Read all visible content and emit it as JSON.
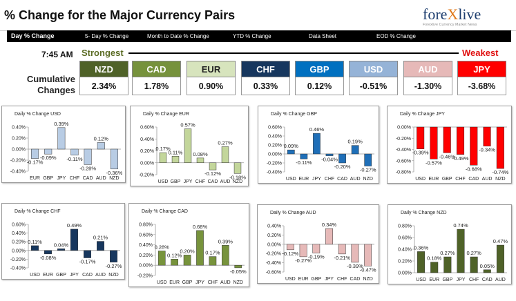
{
  "header": {
    "title": "% Change for the Major Currency Pairs",
    "logo_text_a": "fore",
    "logo_text_x": "X",
    "logo_text_b": "live",
    "logo_tagline": "Forexlive Currency Market News"
  },
  "nav": {
    "items": [
      "Day % Change",
      "5- Day % Change",
      "Month to Date % Change",
      "YTD % Change",
      "Data Sheet",
      "EOD % Change"
    ]
  },
  "summary": {
    "time": "7:45 AM",
    "strongest": "Strongest",
    "weakest": "Weakest",
    "cumulative_label": "Cumulative Changes",
    "currencies": [
      {
        "code": "NZD",
        "value": "2.34%",
        "bg": "#4f6228",
        "fg": "#ffffff"
      },
      {
        "code": "CAD",
        "value": "1.78%",
        "bg": "#76923c",
        "fg": "#ffffff"
      },
      {
        "code": "EUR",
        "value": "0.90%",
        "bg": "#d7e4bd",
        "fg": "#222222"
      },
      {
        "code": "CHF",
        "value": "0.33%",
        "bg": "#17375e",
        "fg": "#ffffff"
      },
      {
        "code": "GBP",
        "value": "0.12%",
        "bg": "#0070c0",
        "fg": "#ffffff"
      },
      {
        "code": "USD",
        "value": "-0.51%",
        "bg": "#95b3d7",
        "fg": "#ffffff"
      },
      {
        "code": "AUD",
        "value": "-1.30%",
        "bg": "#e6b9b8",
        "fg": "#ffffff"
      },
      {
        "code": "JPY",
        "value": "-3.68%",
        "bg": "#ff0000",
        "fg": "#ffffff"
      }
    ]
  },
  "chart_data": [
    {
      "type": "bar",
      "title": "Daily % Change USD",
      "categories": [
        "EUR",
        "GBP",
        "JPY",
        "CHF",
        "CAD",
        "AUD",
        "NZD"
      ],
      "values": [
        -0.17,
        -0.09,
        0.39,
        -0.11,
        -0.28,
        0.12,
        -0.36
      ],
      "labels": [
        "-0.17%",
        "-0.09%",
        "0.39%",
        "-0.11%",
        "-0.28%",
        "0.12%",
        "-0.36%"
      ],
      "ylim": [
        -0.4,
        0.4
      ],
      "ticks": [
        "0.40%",
        "0.20%",
        "0.00%",
        "-0.20%",
        "-0.40%"
      ],
      "colors": [
        "#b8cce4",
        "#b8cce4",
        "#b8cce4",
        "#b8cce4",
        "#b8cce4",
        "#b8cce4",
        "#b8cce4"
      ],
      "outlier": "#dbe5f1"
    },
    {
      "type": "bar",
      "title": "Daily % Change EUR",
      "categories": [
        "USD",
        "GBP",
        "JPY",
        "CHF",
        "CAD",
        "AUD",
        "NZD"
      ],
      "values": [
        0.17,
        0.11,
        0.57,
        0.08,
        -0.12,
        0.27,
        -0.18
      ],
      "labels": [
        "0.17%",
        "0.11%",
        "0.57%",
        "0.08%",
        "-0.12%",
        "0.27%",
        "-0.18%"
      ],
      "ylim": [
        -0.2,
        0.6
      ],
      "ticks": [
        "0.60%",
        "0.40%",
        "0.20%",
        "0.00%",
        "-0.20%"
      ],
      "colors": [
        "#c3d69b",
        "#c3d69b",
        "#c3d69b",
        "#c3d69b",
        "#c3d69b",
        "#c3d69b",
        "#c3d69b"
      ]
    },
    {
      "type": "bar",
      "title": "Daily % Change GBP",
      "categories": [
        "USD",
        "EUR",
        "JPY",
        "CHF",
        "CAD",
        "AUD",
        "NZD"
      ],
      "values": [
        0.09,
        -0.11,
        0.46,
        -0.04,
        -0.2,
        0.19,
        -0.27
      ],
      "labels": [
        "0.09%",
        "-0.11%",
        "0.46%",
        "-0.04%",
        "-0.20%",
        "0.19%",
        "-0.27%"
      ],
      "ylim": [
        -0.4,
        0.6
      ],
      "ticks": [
        "0.60%",
        "0.40%",
        "0.20%",
        "0.00%",
        "-0.20%",
        "-0.40%"
      ],
      "colors": [
        "#1f6fb8",
        "#1f6fb8",
        "#1f6fb8",
        "#1f6fb8",
        "#1f6fb8",
        "#1f6fb8",
        "#1f6fb8"
      ]
    },
    {
      "type": "bar",
      "title": "Daily % Change JPY",
      "categories": [
        "USD",
        "EUR",
        "GBP",
        "CHF",
        "CAD",
        "AUD",
        "NZD"
      ],
      "values": [
        -0.39,
        -0.57,
        -0.46,
        -0.49,
        -0.68,
        -0.34,
        -0.74
      ],
      "labels": [
        "-0.39%",
        "-0.57%",
        "-0.46%",
        "-0.49%",
        "-0.68%",
        "-0.34%",
        "-0.74%"
      ],
      "ylim": [
        -0.8,
        0.0
      ],
      "ticks": [
        "0.00%",
        "-0.20%",
        "-0.40%",
        "-0.60%",
        "-0.80%"
      ],
      "colors": [
        "#ff0000",
        "#ff0000",
        "#ff0000",
        "#ff0000",
        "#ff0000",
        "#ff0000",
        "#ff0000"
      ]
    },
    {
      "type": "bar",
      "title": "Daily % Change CHF",
      "categories": [
        "USD",
        "EUR",
        "GBP",
        "JPY",
        "CAD",
        "AUD",
        "NZD"
      ],
      "values": [
        0.11,
        -0.08,
        0.04,
        0.49,
        -0.17,
        0.21,
        -0.27
      ],
      "labels": [
        "0.11%",
        "-0.08%",
        "0.04%",
        "0.49%",
        "-0.17%",
        "0.21%",
        "-0.27%"
      ],
      "ylim": [
        -0.4,
        0.6
      ],
      "ticks": [
        "0.60%",
        "0.40%",
        "0.20%",
        "0.00%",
        "-0.20%",
        "-0.40%"
      ],
      "colors": [
        "#17375e",
        "#17375e",
        "#17375e",
        "#17375e",
        "#17375e",
        "#17375e",
        "#17375e"
      ]
    },
    {
      "type": "bar",
      "title": "Daily % Change CAD",
      "categories": [
        "USD",
        "EUR",
        "GBP",
        "JPY",
        "CHF",
        "AUD",
        "NZD"
      ],
      "values": [
        0.28,
        0.12,
        0.2,
        0.68,
        0.17,
        0.39,
        -0.05
      ],
      "labels": [
        "0.28%",
        "0.12%",
        "0.20%",
        "0.68%",
        "0.17%",
        "0.39%",
        "-0.05%"
      ],
      "ylim": [
        -0.2,
        0.8
      ],
      "ticks": [
        "0.80%",
        "0.60%",
        "0.40%",
        "0.20%",
        "0.00%",
        "-0.20%"
      ],
      "colors": [
        "#77933c",
        "#77933c",
        "#77933c",
        "#77933c",
        "#77933c",
        "#77933c",
        "#77933c"
      ]
    },
    {
      "type": "bar",
      "title": "Daily % Change AUD",
      "categories": [
        "USD",
        "EUR",
        "GBP",
        "JPY",
        "CHF",
        "CAD",
        "NZD"
      ],
      "values": [
        -0.12,
        -0.27,
        -0.19,
        0.34,
        -0.21,
        -0.39,
        -0.47
      ],
      "labels": [
        "-0.12%",
        "-0.27%",
        "-0.19%",
        "0.34%",
        "-0.21%",
        "-0.39%",
        "-0.47%"
      ],
      "ylim": [
        -0.6,
        0.4
      ],
      "ticks": [
        "0.40%",
        "0.20%",
        "0.00%",
        "-0.20%",
        "-0.40%",
        "-0.60%"
      ],
      "colors": [
        "#e6b9b8",
        "#e6b9b8",
        "#e6b9b8",
        "#e6b9b8",
        "#e6b9b8",
        "#e6b9b8",
        "#e6b9b8"
      ]
    },
    {
      "type": "bar",
      "title": "Daily % Change NZD",
      "categories": [
        "USD",
        "EUR",
        "GBP",
        "JPY",
        "CHF",
        "CAD",
        "AUD"
      ],
      "values": [
        0.36,
        0.18,
        0.27,
        0.74,
        0.27,
        0.05,
        0.47
      ],
      "labels": [
        "0.36%",
        "0.18%",
        "0.27%",
        "0.74%",
        "0.27%",
        "0.05%",
        "0.47%"
      ],
      "ylim": [
        0.0,
        0.8
      ],
      "ticks": [
        "0.80%",
        "0.60%",
        "0.40%",
        "0.20%",
        "0.00%"
      ],
      "colors": [
        "#4f6228",
        "#4f6228",
        "#4f6228",
        "#4f6228",
        "#4f6228",
        "#4f6228",
        "#4f6228"
      ]
    }
  ]
}
